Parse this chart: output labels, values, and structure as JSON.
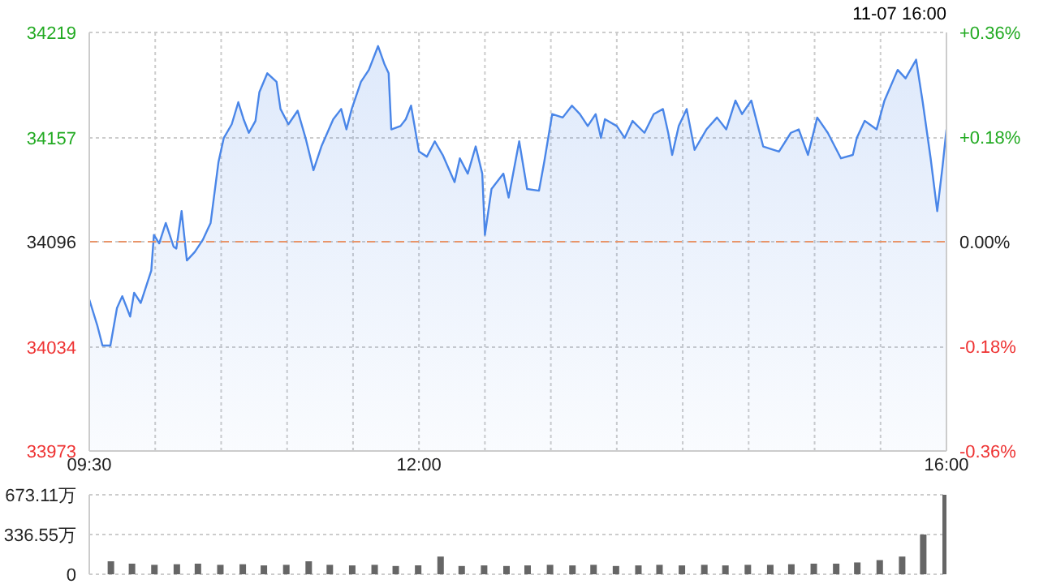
{
  "chart_data": [
    {
      "type": "area",
      "subtitle": "11-07 16:00",
      "xlim": [
        9.5,
        16
      ],
      "xticks": [
        {
          "value": 9.5,
          "label": "09:30"
        },
        {
          "value": 10,
          "label": null
        },
        {
          "value": 10.5,
          "label": null
        },
        {
          "value": 11,
          "label": null
        },
        {
          "value": 11.5,
          "label": null
        },
        {
          "value": 12,
          "label": "12:00"
        },
        {
          "value": 12.5,
          "label": null
        },
        {
          "value": 13,
          "label": null
        },
        {
          "value": 13.5,
          "label": null
        },
        {
          "value": 14,
          "label": null
        },
        {
          "value": 14.5,
          "label": null
        },
        {
          "value": 15,
          "label": null
        },
        {
          "value": 15.5,
          "label": null
        },
        {
          "value": 16,
          "label": "16:00"
        }
      ],
      "ylim": [
        33973,
        34219
      ],
      "yticks": [
        33973,
        34034,
        34096,
        34157,
        34219
      ],
      "y2lim": [
        -0.36,
        0.36
      ],
      "y2ticks": [
        {
          "value": -0.36,
          "label": "-0.36%"
        },
        {
          "value": -0.18,
          "label": "-0.18%"
        },
        {
          "value": 0,
          "label": "0.00%"
        },
        {
          "value": 0.18,
          "label": "+0.18%"
        },
        {
          "value": 0.36,
          "label": "+0.36%"
        }
      ],
      "grid": true,
      "ref_lines": [
        {
          "axis": "y",
          "value": 34096,
          "color": "#e8956a",
          "line_style": "dashed"
        }
      ],
      "series": [
        {
          "color": "#4a86e8",
          "x": [
            9.5,
            9.56,
            9.6,
            9.66,
            9.71,
            9.75,
            9.81,
            9.84,
            9.89,
            9.97,
            9.99,
            10.03,
            10.08,
            10.14,
            10.16,
            10.2,
            10.24,
            10.3,
            10.36,
            10.42,
            10.48,
            10.52,
            10.58,
            10.63,
            10.67,
            10.71,
            10.76,
            10.79,
            10.85,
            10.92,
            10.95,
            11.01,
            11.08,
            11.14,
            11.2,
            11.26,
            11.35,
            11.41,
            11.45,
            11.49,
            11.56,
            11.62,
            11.69,
            11.74,
            11.77,
            11.79,
            11.86,
            11.9,
            11.94,
            12,
            12.06,
            12.12,
            12.18,
            12.27,
            12.31,
            12.37,
            12.43,
            12.48,
            12.5,
            12.55,
            12.64,
            12.68,
            12.76,
            12.82,
            12.91,
            12.95,
            13.01,
            13.09,
            13.16,
            13.22,
            13.28,
            13.34,
            13.38,
            13.41,
            13.5,
            13.56,
            13.62,
            13.71,
            13.78,
            13.85,
            13.89,
            13.92,
            13.97,
            14.03,
            14.09,
            14.18,
            14.26,
            14.33,
            14.4,
            14.45,
            14.52,
            14.61,
            14.73,
            14.82,
            14.88,
            14.95,
            15.02,
            15.1,
            15.2,
            15.29,
            15.32,
            15.38,
            15.47,
            15.53,
            15.63,
            15.69,
            15.77,
            15.82,
            15.88,
            15.93,
            15.97,
            16
          ],
          "values": [
            34062,
            34047,
            34035,
            34035,
            34057,
            34064,
            34052,
            34066,
            34060,
            34079,
            34100,
            34095,
            34107,
            34093,
            34092,
            34114,
            34085,
            34090,
            34097,
            34107,
            34143,
            34157,
            34165,
            34178,
            34168,
            34160,
            34167,
            34184,
            34195,
            34190,
            34174,
            34165,
            34173,
            34157,
            34138,
            34152,
            34168,
            34174,
            34162,
            34174,
            34190,
            34197,
            34211,
            34200,
            34195,
            34162,
            34164,
            34168,
            34176,
            34149,
            34146,
            34155,
            34147,
            34131,
            34145,
            34136,
            34152,
            34136,
            34100,
            34127,
            34136,
            34122,
            34155,
            34127,
            34126,
            34143,
            34171,
            34169,
            34176,
            34171,
            34164,
            34171,
            34157,
            34168,
            34164,
            34157,
            34167,
            34160,
            34171,
            34174,
            34160,
            34147,
            34164,
            34174,
            34150,
            34162,
            34169,
            34162,
            34179,
            34171,
            34179,
            34152,
            34149,
            34160,
            34162,
            34147,
            34169,
            34160,
            34145,
            34147,
            34157,
            34167,
            34162,
            34179,
            34197,
            34192,
            34203,
            34178,
            34145,
            34114,
            34140,
            34162
          ]
        }
      ]
    },
    {
      "type": "bar",
      "tick_labels": "y",
      "grid": "y",
      "xlim": [
        9.5,
        16
      ],
      "ylim": [
        0,
        673.11
      ],
      "yticks": [
        0,
        {
          "value": 336.55,
          "label": "336.55万"
        },
        {
          "value": 673.11,
          "label": "673.11万"
        }
      ],
      "series": [
        {
          "color": "#666666",
          "x": [
            9.67,
            9.83,
            10,
            10.17,
            10.33,
            10.5,
            10.67,
            10.83,
            11,
            11.17,
            11.33,
            11.5,
            11.67,
            11.83,
            12,
            12.17,
            12.33,
            12.5,
            12.67,
            12.83,
            13,
            13.17,
            13.33,
            13.5,
            13.67,
            13.83,
            14,
            14.17,
            14.33,
            14.5,
            14.67,
            14.83,
            15,
            15.17,
            15.33,
            15.5,
            15.67,
            15.83,
            16
          ],
          "values": [
            110,
            90,
            80,
            85,
            90,
            80,
            85,
            75,
            80,
            110,
            80,
            75,
            80,
            70,
            75,
            150,
            70,
            75,
            70,
            75,
            80,
            75,
            80,
            70,
            75,
            80,
            75,
            80,
            75,
            80,
            80,
            85,
            90,
            90,
            100,
            120,
            150,
            336.55,
            673.11
          ]
        }
      ]
    }
  ]
}
